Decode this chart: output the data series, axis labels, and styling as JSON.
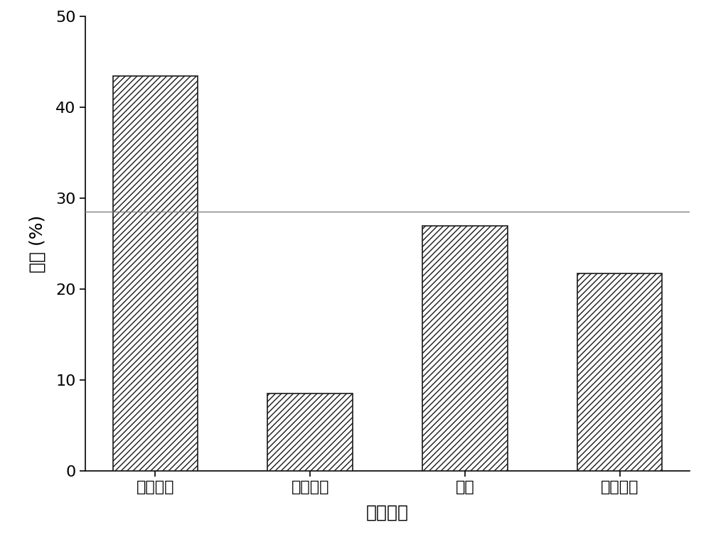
{
  "categories": [
    "芽孢杆菌",
    "脱硫弧菌",
    "弧菌",
    "假单胞菌"
  ],
  "values": [
    43.5,
    8.5,
    27.0,
    21.7
  ],
  "hline_y": 28.5,
  "hline_color": "#808080",
  "bar_facecolor": "#ffffff",
  "bar_edgecolor": "#1a1a1a",
  "hatch_pattern": "////",
  "xlabel": "菌剂组成",
  "ylabel": "丰度 (%)",
  "ylim": [
    0,
    50
  ],
  "yticks": [
    0,
    10,
    20,
    30,
    40,
    50
  ],
  "bar_width": 0.55,
  "axis_fontsize": 18,
  "tick_fontsize": 16,
  "background_color": "#ffffff",
  "figsize": [
    10.0,
    7.8
  ],
  "dpi": 100
}
